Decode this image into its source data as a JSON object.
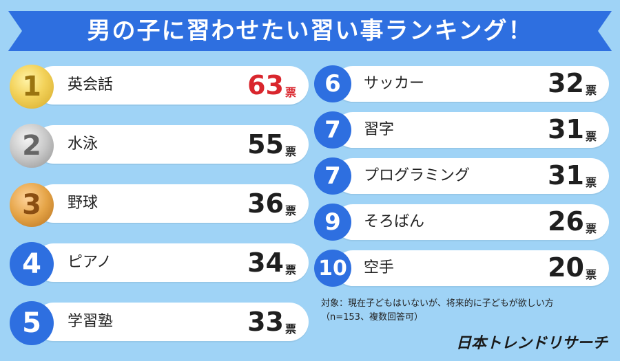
{
  "title": "男の子に習わせたい習い事ランキング！",
  "colors": {
    "background": "#9fd3f6",
    "ribbon": "#2e6fe0",
    "badge_blue": "#2e6fe0",
    "highlight": "#d9262d"
  },
  "unit_label": "票",
  "chart_data": {
    "type": "table",
    "title": "男の子に習わせたい習い事ランキング！",
    "columns": [
      "rank",
      "activity",
      "votes"
    ],
    "rows": [
      {
        "rank": "1",
        "activity": "英会話",
        "votes": "63"
      },
      {
        "rank": "2",
        "activity": "水泳",
        "votes": "55"
      },
      {
        "rank": "3",
        "activity": "野球",
        "votes": "36"
      },
      {
        "rank": "4",
        "activity": "ピアノ",
        "votes": "34"
      },
      {
        "rank": "5",
        "activity": "学習塾",
        "votes": "33"
      },
      {
        "rank": "6",
        "activity": "サッカー",
        "votes": "32"
      },
      {
        "rank": "7",
        "activity": "習字",
        "votes": "31"
      },
      {
        "rank": "7",
        "activity": "プログラミング",
        "votes": "31"
      },
      {
        "rank": "9",
        "activity": "そろばん",
        "votes": "26"
      },
      {
        "rank": "10",
        "activity": "空手",
        "votes": "20"
      }
    ]
  },
  "note": {
    "line1": "対象：現在子どもはいないが、将来的に子どもが欲しい方",
    "line2": "（n=153、複数回答可）"
  },
  "logo_text": "日本トレンドリサーチ"
}
